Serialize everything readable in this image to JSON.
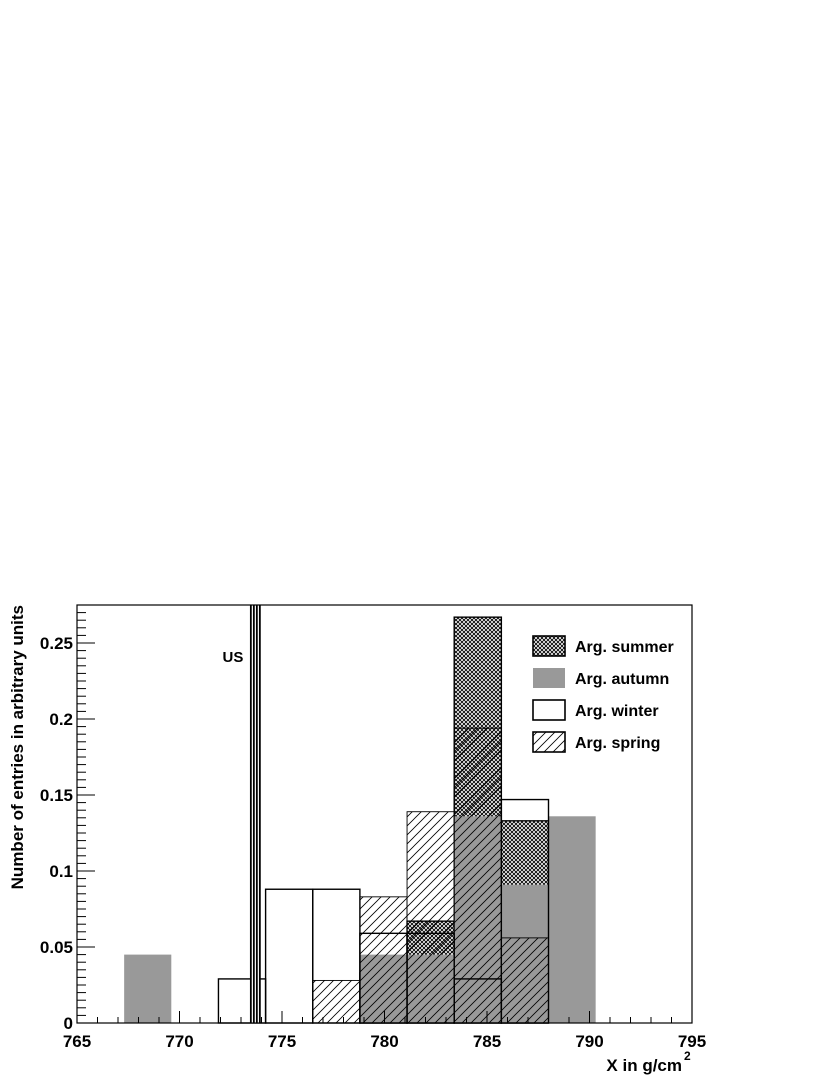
{
  "chart_data": {
    "type": "bar",
    "xlabel": "X in g/cm",
    "xlabel_sup": "2",
    "ylabel": "Number of entries in arbitrary units",
    "xlim": [
      765,
      795
    ],
    "ylim": [
      0,
      0.275
    ],
    "x_ticks": [
      765,
      770,
      775,
      780,
      785,
      790,
      795
    ],
    "x_tick_labels": [
      "765",
      "770",
      "775",
      "780",
      "785",
      "790",
      "795"
    ],
    "y_ticks": [
      0,
      0.05,
      0.1,
      0.15,
      0.2,
      0.25
    ],
    "y_tick_labels": [
      "0",
      "0.05",
      "0.1",
      "0.15",
      "0.2",
      "0.25"
    ],
    "grid": false,
    "legend_position": "top-right",
    "bin_edges": [
      767.3,
      769.6,
      771.9,
      774.2,
      776.5,
      778.8,
      781.1,
      783.4,
      785.7,
      788.0,
      790.3
    ],
    "series": [
      {
        "name": "Arg. summer",
        "style": "crosshatch",
        "values": [
          0,
          0,
          0,
          0,
          0,
          0.033,
          0.067,
          0.267,
          0.133,
          0,
          0
        ]
      },
      {
        "name": "Arg. autumn",
        "style": "solid-gray",
        "color": "#999999",
        "values": [
          0.045,
          0,
          0,
          0,
          0,
          0.045,
          0.045,
          0.136,
          0.091,
          0.136,
          0
        ]
      },
      {
        "name": "Arg. winter",
        "style": "outline",
        "values": [
          0,
          0,
          0.029,
          0.088,
          0.088,
          0.059,
          0.059,
          0.029,
          0.147,
          0,
          0
        ]
      },
      {
        "name": "Arg. spring",
        "style": "diagonal-hatch",
        "values": [
          0,
          0,
          0,
          0,
          0.028,
          0.083,
          0.139,
          0.194,
          0.056,
          0,
          0
        ]
      }
    ],
    "annotations": [
      {
        "text": "US",
        "x": 773.7
      }
    ]
  }
}
